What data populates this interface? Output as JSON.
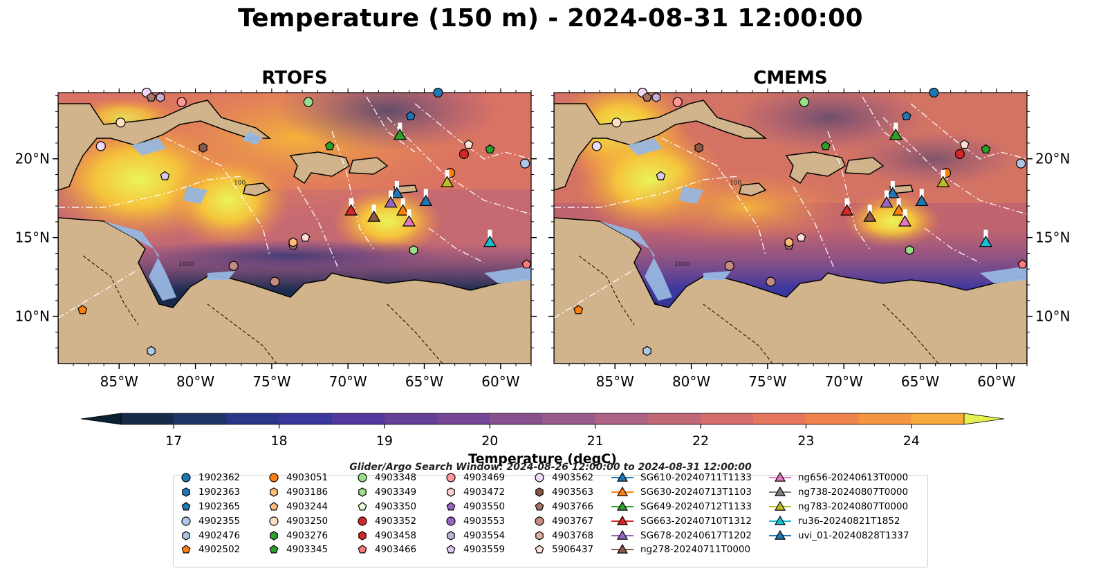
{
  "title": "Temperature (150 m) - 2024-08-31 12:00:00",
  "panels": [
    {
      "title": "RTOFS"
    },
    {
      "title": "CMEMS"
    }
  ],
  "axes": {
    "x_ticks": [
      "85°W",
      "80°W",
      "75°W",
      "70°W",
      "65°W",
      "60°W"
    ],
    "y_ticks": [
      "20°N",
      "15°N",
      "10°N"
    ]
  },
  "map_extent": {
    "lon": [
      -89,
      -58
    ],
    "lat": [
      7,
      24.2
    ]
  },
  "isobath_labels": [
    "1000",
    "100"
  ],
  "colors": {
    "land": "#d2b48c",
    "shelf": "#97b6e0",
    "border": "#000000",
    "eez": "#ffffff",
    "colormap": [
      "#0b2132",
      "#142b4a",
      "#1f3466",
      "#2a3688",
      "#3b379f",
      "#52399f",
      "#643e99",
      "#764696",
      "#88508f",
      "#9a5a8a",
      "#ad6283",
      "#c16877",
      "#d56e6a",
      "#e6765c",
      "#ef854c",
      "#f5963f",
      "#f8aa3a",
      "#f5bd3a",
      "#f2d341",
      "#e6f151"
    ]
  },
  "colorbar": {
    "title": "Temperature (degC)",
    "min": 16.5,
    "max": 24.5,
    "step": 0.5,
    "tick_values": [
      17,
      18,
      19,
      20,
      21,
      22,
      23,
      24
    ],
    "tick_labels": [
      "17",
      "18",
      "19",
      "20",
      "21",
      "22",
      "23",
      "24"
    ]
  },
  "search_window": "Glider/Argo Search Window: 2024-08-26 12:00:00 to 2024-08-31 12:00:00",
  "legend": {
    "columns": [
      [
        {
          "label": "1902362",
          "marker": "circle",
          "color": "#1f77b4"
        },
        {
          "label": "1902363",
          "marker": "hexagon",
          "color": "#1f77b4"
        },
        {
          "label": "1902365",
          "marker": "pentagon",
          "color": "#1f77b4"
        },
        {
          "label": "4902355",
          "marker": "circle",
          "color": "#aec7e8"
        },
        {
          "label": "4902476",
          "marker": "hexagon",
          "color": "#aec7e8"
        },
        {
          "label": "4902502",
          "marker": "pentagon",
          "color": "#ff7f0e"
        }
      ],
      [
        {
          "label": "4903051",
          "marker": "circle",
          "color": "#ff7f0e"
        },
        {
          "label": "4903186",
          "marker": "hexagon",
          "color": "#ffbb78"
        },
        {
          "label": "4903244",
          "marker": "pentagon",
          "color": "#ffbb78"
        },
        {
          "label": "4903250",
          "marker": "circle",
          "color": "#ffe0c0"
        },
        {
          "label": "4903276",
          "marker": "hexagon",
          "color": "#2ca02c"
        },
        {
          "label": "4903345",
          "marker": "pentagon",
          "color": "#2ca02c"
        }
      ],
      [
        {
          "label": "4903348",
          "marker": "circle",
          "color": "#98df8a"
        },
        {
          "label": "4903349",
          "marker": "hexagon",
          "color": "#98df8a"
        },
        {
          "label": "4903350",
          "marker": "pentagon",
          "color": "#e5ffd8"
        },
        {
          "label": "4903352",
          "marker": "circle",
          "color": "#d62728"
        },
        {
          "label": "4903458",
          "marker": "hexagon",
          "color": "#d62728"
        },
        {
          "label": "4903466",
          "marker": "pentagon",
          "color": "#ff7b7b"
        }
      ],
      [
        {
          "label": "4903469",
          "marker": "circle",
          "color": "#ff9896"
        },
        {
          "label": "4903472",
          "marker": "hexagon",
          "color": "#ffd0d0"
        },
        {
          "label": "4903550",
          "marker": "pentagon",
          "color": "#9467bd"
        },
        {
          "label": "4903553",
          "marker": "circle",
          "color": "#9467bd"
        },
        {
          "label": "4903554",
          "marker": "hexagon",
          "color": "#c5b0d5"
        },
        {
          "label": "4903559",
          "marker": "pentagon",
          "color": "#d9c8ee"
        }
      ],
      [
        {
          "label": "4903562",
          "marker": "circle",
          "color": "#eed8f8"
        },
        {
          "label": "4903563",
          "marker": "hexagon",
          "color": "#8c564b"
        },
        {
          "label": "4903766",
          "marker": "pentagon",
          "color": "#a87668"
        },
        {
          "label": "4903767",
          "marker": "circle",
          "color": "#c48c80"
        },
        {
          "label": "4903768",
          "marker": "hexagon",
          "color": "#e0aea3"
        },
        {
          "label": "5906437",
          "marker": "pentagon",
          "color": "#ffe0d8"
        }
      ],
      [
        {
          "label": "SG610-20240711T1133",
          "marker": "triangle-line",
          "color": "#1f77b4"
        },
        {
          "label": "SG630-20240713T1103",
          "marker": "triangle-line",
          "color": "#ff7f0e"
        },
        {
          "label": "SG649-20240712T1133",
          "marker": "triangle-line",
          "color": "#2ca02c"
        },
        {
          "label": "SG663-20240710T1312",
          "marker": "triangle-line",
          "color": "#d62728"
        },
        {
          "label": "SG678-20240617T1202",
          "marker": "triangle-line",
          "color": "#9467bd"
        },
        {
          "label": "ng278-20240711T0000",
          "marker": "triangle-line",
          "color": "#8c564b"
        }
      ],
      [
        {
          "label": "ng656-20240613T0000",
          "marker": "triangle-line",
          "color": "#e377c2"
        },
        {
          "label": "ng738-20240807T0000",
          "marker": "triangle-line",
          "color": "#7f7f7f"
        },
        {
          "label": "ng783-20240807T0000",
          "marker": "triangle-line",
          "color": "#bcbd22"
        },
        {
          "label": "ru36-20240821T1852",
          "marker": "triangle-line",
          "color": "#17becf"
        },
        {
          "label": "uvi_01-20240828T1337",
          "marker": "triangle-line",
          "color": "#1f77b4"
        }
      ]
    ]
  },
  "platforms": [
    {
      "id": "4903562",
      "lon": -83.2,
      "lat": 24.2
    },
    {
      "id": "4903766",
      "lon": -82.9,
      "lat": 23.9
    },
    {
      "id": "4903554",
      "lon": -82.3,
      "lat": 23.9
    },
    {
      "id": "4903469",
      "lon": -80.9,
      "lat": 23.6
    },
    {
      "id": "1902362",
      "lon": -64.1,
      "lat": 24.2
    },
    {
      "id": "4903348",
      "lon": -72.6,
      "lat": 23.6
    },
    {
      "id": "1902365",
      "lon": -65.9,
      "lat": 22.7
    },
    {
      "id": "4903250",
      "lon": -84.9,
      "lat": 22.3
    },
    {
      "id": "4903345",
      "lon": -71.2,
      "lat": 20.8
    },
    {
      "id": "4903563",
      "lon": -79.5,
      "lat": 20.7
    },
    {
      "id": "4903562",
      "lon": -86.2,
      "lat": 20.8
    },
    {
      "id": "5906437",
      "lon": -62.1,
      "lat": 20.9
    },
    {
      "id": "4903345",
      "lon": -60.7,
      "lat": 20.6
    },
    {
      "id": "4903352",
      "lon": -62.4,
      "lat": 20.3
    },
    {
      "id": "4902355",
      "lon": -58.4,
      "lat": 19.7
    },
    {
      "id": "4903051",
      "lon": -63.3,
      "lat": 19.1
    },
    {
      "id": "4903559",
      "lon": -82.0,
      "lat": 18.9
    },
    {
      "id": "4903766",
      "lon": -73.6,
      "lat": 14.5
    },
    {
      "id": "4903186",
      "lon": -73.6,
      "lat": 14.7
    },
    {
      "id": "5906437",
      "lon": -72.8,
      "lat": 15.0
    },
    {
      "id": "4903349",
      "lon": -65.7,
      "lat": 14.2
    },
    {
      "id": "4903767",
      "lon": -77.5,
      "lat": 13.2
    },
    {
      "id": "4903767",
      "lon": -74.8,
      "lat": 12.2
    },
    {
      "id": "4903466",
      "lon": -58.3,
      "lat": 13.3
    },
    {
      "id": "4902502",
      "lon": -87.4,
      "lat": 10.4
    },
    {
      "id": "4902476",
      "lon": -82.9,
      "lat": 7.8
    }
  ],
  "gliders": [
    {
      "id": "SG649-20240712T1133",
      "lon": -66.6,
      "lat": 21.5
    },
    {
      "id": "ng783-20240807T0000",
      "lon": -63.5,
      "lat": 18.5
    },
    {
      "id": "uvi_01-20240828T1337",
      "lon": -66.8,
      "lat": 17.8
    },
    {
      "id": "SG678-20240617T1202",
      "lon": -67.2,
      "lat": 17.2
    },
    {
      "id": "SG610-20240711T1133",
      "lon": -64.9,
      "lat": 17.3
    },
    {
      "id": "SG663-20240710T1312",
      "lon": -69.8,
      "lat": 16.7
    },
    {
      "id": "SG630-20240713T1103",
      "lon": -66.4,
      "lat": 16.7
    },
    {
      "id": "ng278-20240711T0000",
      "lon": -68.3,
      "lat": 16.3
    },
    {
      "id": "ng656-20240613T0000",
      "lon": -66.0,
      "lat": 16.0
    },
    {
      "id": "ru36-20240821T1852",
      "lon": -60.7,
      "lat": 14.7
    }
  ]
}
